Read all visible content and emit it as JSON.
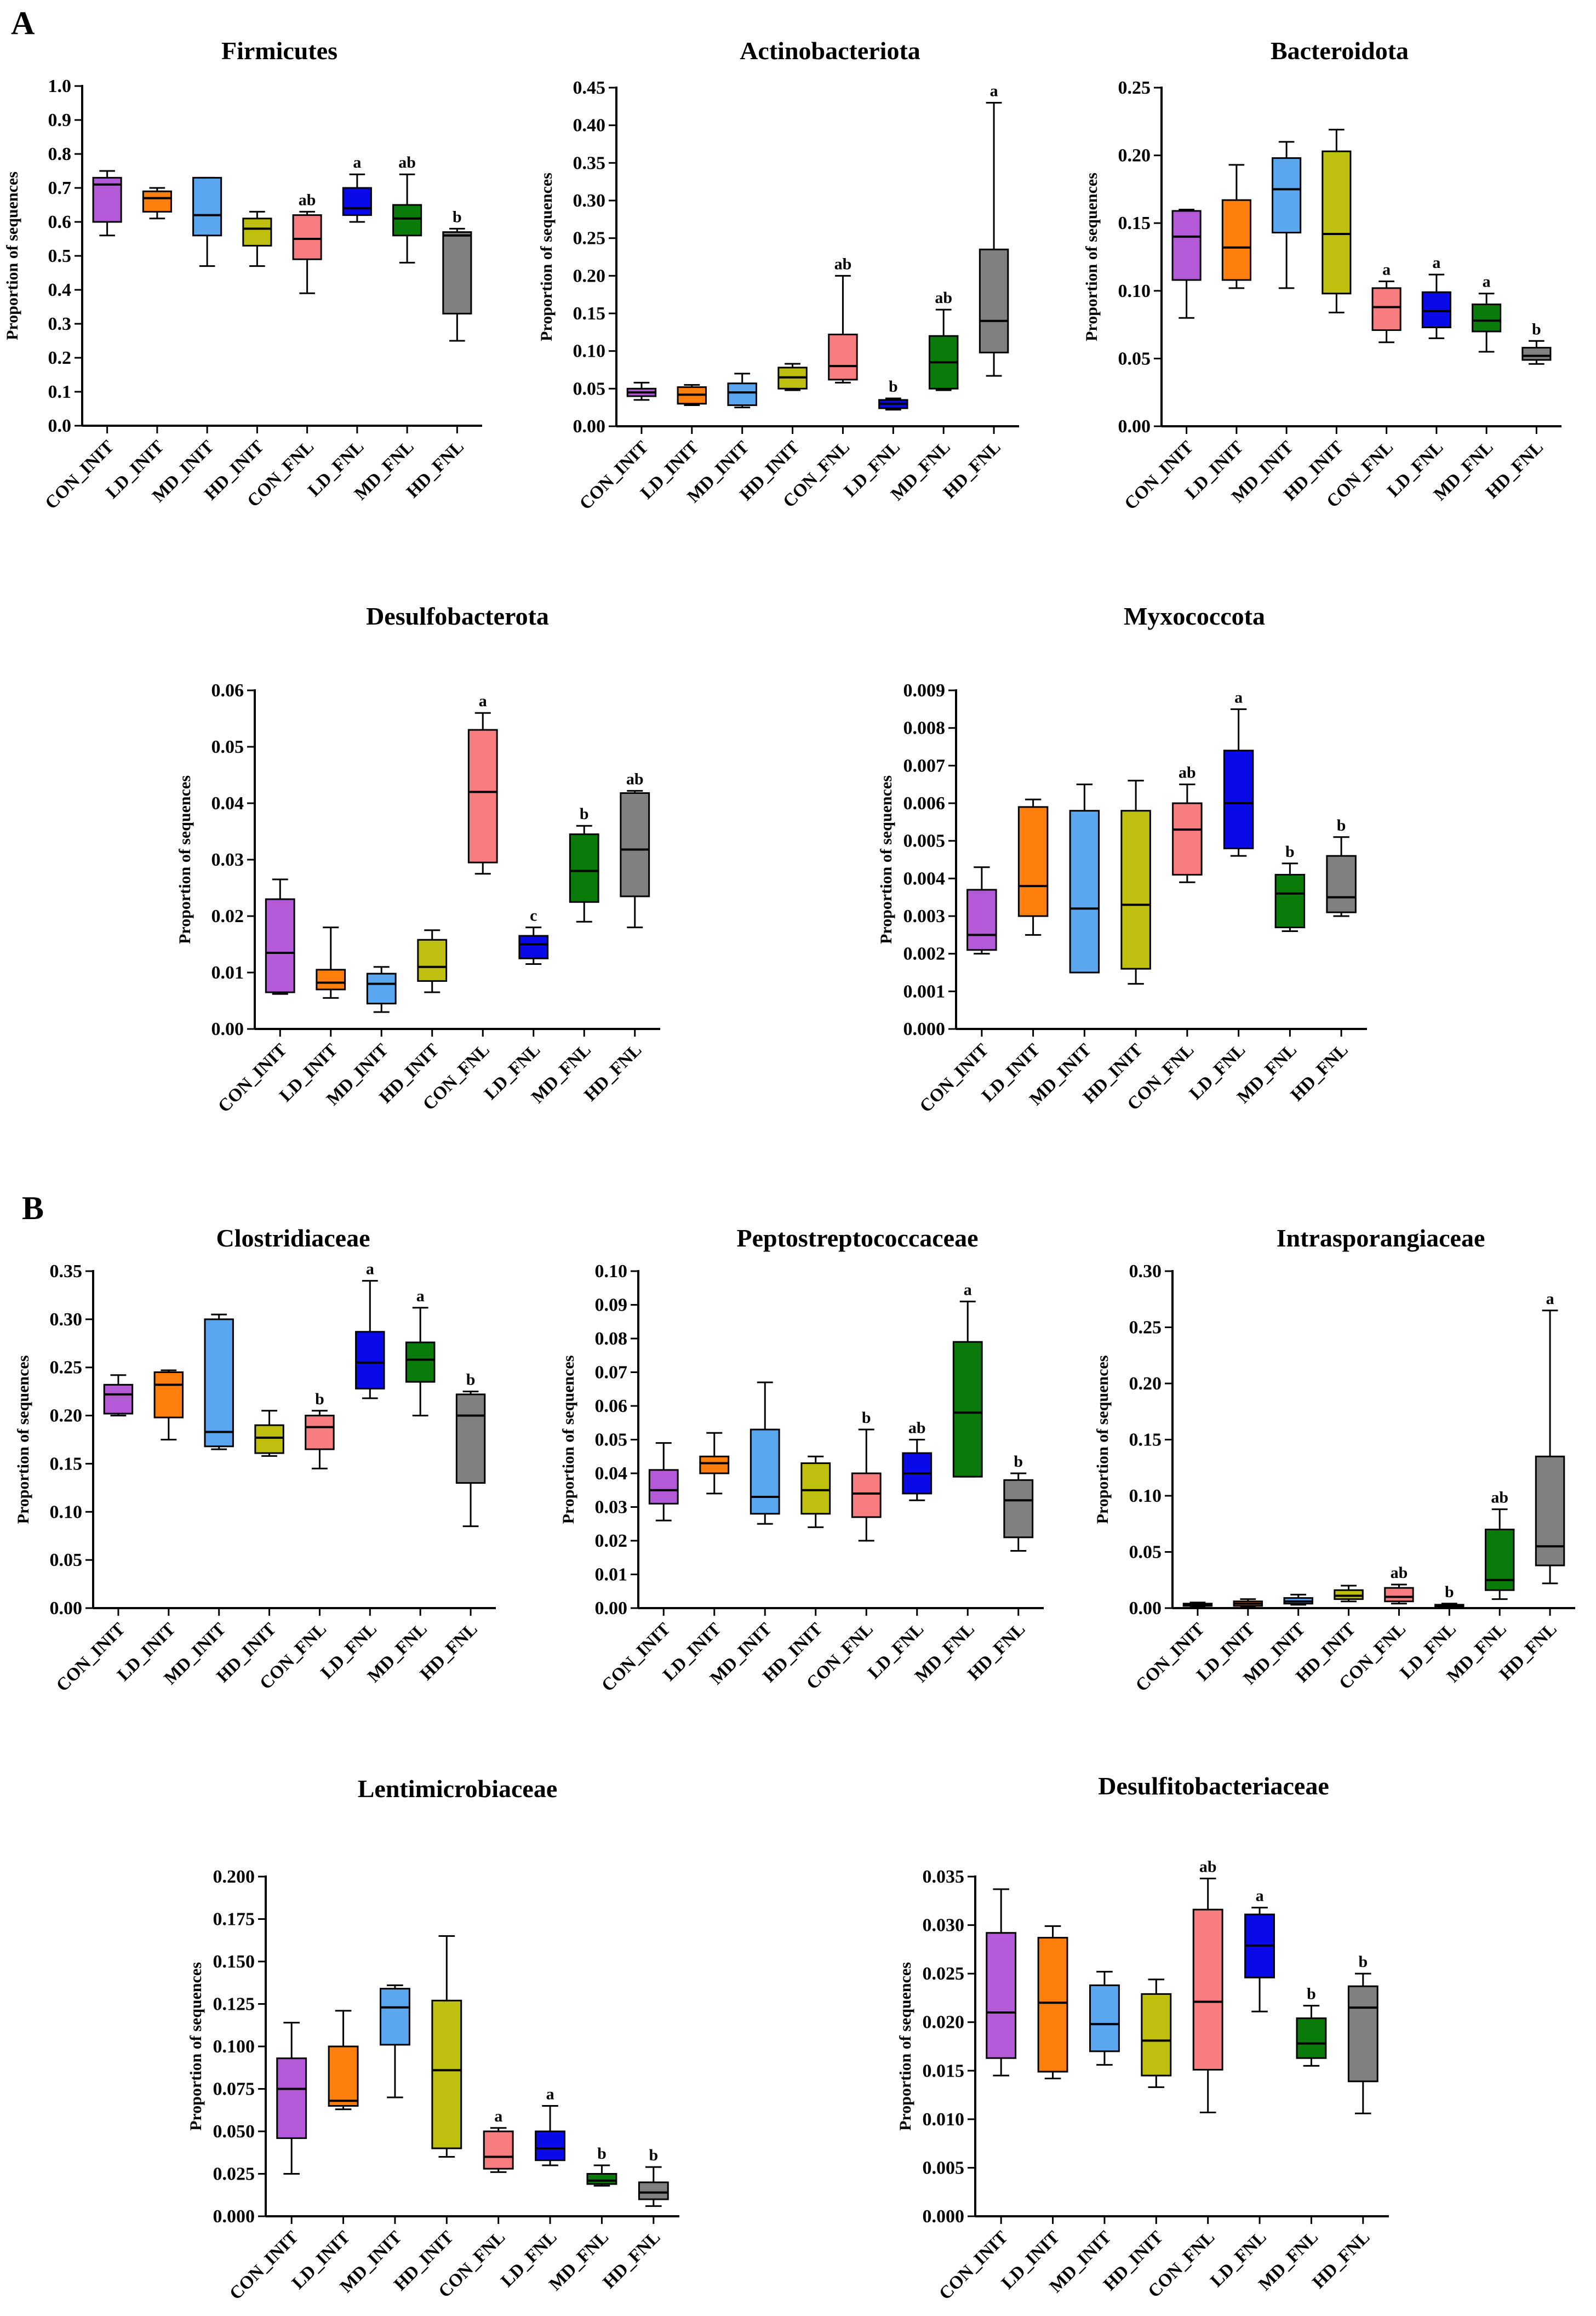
{
  "panel_labels": [
    "A",
    "B"
  ],
  "group_colors": {
    "CON_INIT": "#b45ad8",
    "LD_INIT": "#ff7f0e",
    "MD_INIT": "#5aa6ef",
    "HD_INIT": "#bfbf10",
    "CON_FNL": "#f87d80",
    "LD_FNL": "#0a0ae8",
    "MD_FNL": "#0a7a0a",
    "HD_FNL": "#808080"
  },
  "chart_data": [
    {
      "type": "box",
      "title": "Firmicutes",
      "ylabel": "Proportion of sequences",
      "ylim": [
        0,
        1.0
      ],
      "yticks": [
        "0.0",
        "0.1",
        "0.2",
        "0.3",
        "0.4",
        "0.5",
        "0.6",
        "0.7",
        "0.8",
        "0.9",
        "1.0"
      ],
      "categories": [
        "CON_INIT",
        "LD_INIT",
        "MD_INIT",
        "HD_INIT",
        "CON_FNL",
        "LD_FNL",
        "MD_FNL",
        "HD_FNL"
      ],
      "boxes": [
        {
          "min": 0.56,
          "q1": 0.6,
          "median": 0.71,
          "q3": 0.73,
          "max": 0.75,
          "label": ""
        },
        {
          "min": 0.61,
          "q1": 0.63,
          "median": 0.67,
          "q3": 0.69,
          "max": 0.7,
          "label": ""
        },
        {
          "min": 0.47,
          "q1": 0.56,
          "median": 0.62,
          "q3": 0.73,
          "max": 0.73,
          "label": ""
        },
        {
          "min": 0.47,
          "q1": 0.53,
          "median": 0.58,
          "q3": 0.61,
          "max": 0.63,
          "label": ""
        },
        {
          "min": 0.39,
          "q1": 0.49,
          "median": 0.55,
          "q3": 0.62,
          "max": 0.63,
          "label": "ab"
        },
        {
          "min": 0.6,
          "q1": 0.62,
          "median": 0.64,
          "q3": 0.7,
          "max": 0.74,
          "label": "a"
        },
        {
          "min": 0.48,
          "q1": 0.56,
          "median": 0.61,
          "q3": 0.65,
          "max": 0.74,
          "label": "ab"
        },
        {
          "min": 0.25,
          "q1": 0.33,
          "median": 0.56,
          "q3": 0.57,
          "max": 0.58,
          "label": "b"
        }
      ]
    },
    {
      "type": "box",
      "title": "Actinobacteriota",
      "ylabel": "Proportion of sequences",
      "ylim": [
        0,
        0.45
      ],
      "yticks": [
        "0.00",
        "0.05",
        "0.10",
        "0.15",
        "0.20",
        "0.25",
        "0.30",
        "0.35",
        "0.40",
        "0.45"
      ],
      "categories": [
        "CON_INIT",
        "LD_INIT",
        "MD_INIT",
        "HD_INIT",
        "CON_FNL",
        "LD_FNL",
        "MD_FNL",
        "HD_FNL"
      ],
      "boxes": [
        {
          "min": 0.035,
          "q1": 0.04,
          "median": 0.045,
          "q3": 0.05,
          "max": 0.058,
          "label": ""
        },
        {
          "min": 0.028,
          "q1": 0.03,
          "median": 0.042,
          "q3": 0.052,
          "max": 0.055,
          "label": ""
        },
        {
          "min": 0.025,
          "q1": 0.028,
          "median": 0.045,
          "q3": 0.057,
          "max": 0.07,
          "label": ""
        },
        {
          "min": 0.048,
          "q1": 0.05,
          "median": 0.065,
          "q3": 0.078,
          "max": 0.083,
          "label": ""
        },
        {
          "min": 0.058,
          "q1": 0.062,
          "median": 0.08,
          "q3": 0.122,
          "max": 0.2,
          "label": "ab"
        },
        {
          "min": 0.022,
          "q1": 0.024,
          "median": 0.03,
          "q3": 0.035,
          "max": 0.037,
          "label": "b"
        },
        {
          "min": 0.048,
          "q1": 0.05,
          "median": 0.085,
          "q3": 0.12,
          "max": 0.155,
          "label": "ab"
        },
        {
          "min": 0.067,
          "q1": 0.098,
          "median": 0.14,
          "q3": 0.235,
          "max": 0.43,
          "label": "a"
        }
      ]
    },
    {
      "type": "box",
      "title": "Bacteroidota",
      "ylabel": "Proportion of sequences",
      "ylim": [
        0,
        0.25
      ],
      "yticks": [
        "0.00",
        "0.05",
        "0.10",
        "0.15",
        "0.20",
        "0.25"
      ],
      "categories": [
        "CON_INIT",
        "LD_INIT",
        "MD_INIT",
        "HD_INIT",
        "CON_FNL",
        "LD_FNL",
        "MD_FNL",
        "HD_FNL"
      ],
      "boxes": [
        {
          "min": 0.08,
          "q1": 0.108,
          "median": 0.14,
          "q3": 0.159,
          "max": 0.16,
          "label": ""
        },
        {
          "min": 0.102,
          "q1": 0.108,
          "median": 0.132,
          "q3": 0.167,
          "max": 0.193,
          "label": ""
        },
        {
          "min": 0.102,
          "q1": 0.143,
          "median": 0.175,
          "q3": 0.198,
          "max": 0.21,
          "label": ""
        },
        {
          "min": 0.084,
          "q1": 0.098,
          "median": 0.142,
          "q3": 0.203,
          "max": 0.219,
          "label": ""
        },
        {
          "min": 0.062,
          "q1": 0.071,
          "median": 0.088,
          "q3": 0.102,
          "max": 0.107,
          "label": "a"
        },
        {
          "min": 0.065,
          "q1": 0.073,
          "median": 0.085,
          "q3": 0.099,
          "max": 0.112,
          "label": "a"
        },
        {
          "min": 0.055,
          "q1": 0.07,
          "median": 0.078,
          "q3": 0.09,
          "max": 0.098,
          "label": "a"
        },
        {
          "min": 0.046,
          "q1": 0.049,
          "median": 0.052,
          "q3": 0.058,
          "max": 0.063,
          "label": "b"
        }
      ]
    },
    {
      "type": "box",
      "title": "Desulfobacterota",
      "ylabel": "Proportion of sequences",
      "ylim": [
        0,
        0.06
      ],
      "yticks": [
        "0.00",
        "0.01",
        "0.02",
        "0.03",
        "0.04",
        "0.05",
        "0.06"
      ],
      "categories": [
        "CON_INIT",
        "LD_INIT",
        "MD_INIT",
        "HD_INIT",
        "CON_FNL",
        "LD_FNL",
        "MD_FNL",
        "HD_FNL"
      ],
      "boxes": [
        {
          "min": 0.0062,
          "q1": 0.0065,
          "median": 0.0135,
          "q3": 0.023,
          "max": 0.0265,
          "label": ""
        },
        {
          "min": 0.0055,
          "q1": 0.007,
          "median": 0.0082,
          "q3": 0.0105,
          "max": 0.018,
          "label": ""
        },
        {
          "min": 0.003,
          "q1": 0.0045,
          "median": 0.008,
          "q3": 0.0098,
          "max": 0.011,
          "label": ""
        },
        {
          "min": 0.0065,
          "q1": 0.0085,
          "median": 0.011,
          "q3": 0.0158,
          "max": 0.0175,
          "label": ""
        },
        {
          "min": 0.0275,
          "q1": 0.0295,
          "median": 0.042,
          "q3": 0.053,
          "max": 0.056,
          "label": "a"
        },
        {
          "min": 0.0115,
          "q1": 0.0125,
          "median": 0.015,
          "q3": 0.0165,
          "max": 0.018,
          "label": "c"
        },
        {
          "min": 0.019,
          "q1": 0.0225,
          "median": 0.028,
          "q3": 0.0345,
          "max": 0.036,
          "label": "b"
        },
        {
          "min": 0.018,
          "q1": 0.0235,
          "median": 0.0318,
          "q3": 0.0418,
          "max": 0.0422,
          "label": "ab"
        }
      ]
    },
    {
      "type": "box",
      "title": "Myxococcota",
      "ylabel": "Proportion of sequences",
      "ylim": [
        0,
        0.009
      ],
      "yticks": [
        "0.000",
        "0.001",
        "0.002",
        "0.003",
        "0.004",
        "0.005",
        "0.006",
        "0.007",
        "0.008",
        "0.009"
      ],
      "categories": [
        "CON_INIT",
        "LD_INIT",
        "MD_INIT",
        "HD_INIT",
        "CON_FNL",
        "LD_FNL",
        "MD_FNL",
        "HD_FNL"
      ],
      "boxes": [
        {
          "min": 0.002,
          "q1": 0.0021,
          "median": 0.0025,
          "q3": 0.0037,
          "max": 0.0043,
          "label": ""
        },
        {
          "min": 0.0025,
          "q1": 0.003,
          "median": 0.0038,
          "q3": 0.0059,
          "max": 0.0061,
          "label": ""
        },
        {
          "min": 0.0015,
          "q1": 0.0015,
          "median": 0.0032,
          "q3": 0.0058,
          "max": 0.0065,
          "label": ""
        },
        {
          "min": 0.0012,
          "q1": 0.0016,
          "median": 0.0033,
          "q3": 0.0058,
          "max": 0.0066,
          "label": ""
        },
        {
          "min": 0.0039,
          "q1": 0.0041,
          "median": 0.0053,
          "q3": 0.006,
          "max": 0.0065,
          "label": "ab"
        },
        {
          "min": 0.0046,
          "q1": 0.0048,
          "median": 0.006,
          "q3": 0.0074,
          "max": 0.0085,
          "label": "a"
        },
        {
          "min": 0.0026,
          "q1": 0.0027,
          "median": 0.0036,
          "q3": 0.0041,
          "max": 0.0044,
          "label": "b"
        },
        {
          "min": 0.003,
          "q1": 0.0031,
          "median": 0.0035,
          "q3": 0.0046,
          "max": 0.0051,
          "label": "b"
        }
      ]
    },
    {
      "type": "box",
      "title": "Clostridiaceae",
      "ylabel": "Proportion of sequences",
      "ylim": [
        0,
        0.35
      ],
      "yticks": [
        "0.00",
        "0.05",
        "0.10",
        "0.15",
        "0.20",
        "0.25",
        "0.30",
        "0.35"
      ],
      "categories": [
        "CON_INIT",
        "LD_INIT",
        "MD_INIT",
        "HD_INIT",
        "CON_FNL",
        "LD_FNL",
        "MD_FNL",
        "HD_FNL"
      ],
      "boxes": [
        {
          "min": 0.2,
          "q1": 0.202,
          "median": 0.222,
          "q3": 0.232,
          "max": 0.242,
          "label": ""
        },
        {
          "min": 0.175,
          "q1": 0.198,
          "median": 0.232,
          "q3": 0.245,
          "max": 0.247,
          "label": ""
        },
        {
          "min": 0.165,
          "q1": 0.168,
          "median": 0.183,
          "q3": 0.3,
          "max": 0.305,
          "label": ""
        },
        {
          "min": 0.158,
          "q1": 0.161,
          "median": 0.177,
          "q3": 0.19,
          "max": 0.205,
          "label": ""
        },
        {
          "min": 0.145,
          "q1": 0.165,
          "median": 0.188,
          "q3": 0.2,
          "max": 0.205,
          "label": "b"
        },
        {
          "min": 0.218,
          "q1": 0.228,
          "median": 0.255,
          "q3": 0.287,
          "max": 0.34,
          "label": "a"
        },
        {
          "min": 0.2,
          "q1": 0.235,
          "median": 0.258,
          "q3": 0.276,
          "max": 0.312,
          "label": "a"
        },
        {
          "min": 0.085,
          "q1": 0.13,
          "median": 0.2,
          "q3": 0.222,
          "max": 0.225,
          "label": "b"
        }
      ]
    },
    {
      "type": "box",
      "title": "Peptostreptococcaceae",
      "ylabel": "Proportion of sequences",
      "ylim": [
        0,
        0.1
      ],
      "yticks": [
        "0.00",
        "0.01",
        "0.02",
        "0.03",
        "0.04",
        "0.05",
        "0.06",
        "0.07",
        "0.08",
        "0.09",
        "0.10"
      ],
      "categories": [
        "CON_INIT",
        "LD_INIT",
        "MD_INIT",
        "HD_INIT",
        "CON_FNL",
        "LD_FNL",
        "MD_FNL",
        "HD_FNL"
      ],
      "boxes": [
        {
          "min": 0.026,
          "q1": 0.031,
          "median": 0.035,
          "q3": 0.041,
          "max": 0.049,
          "label": ""
        },
        {
          "min": 0.034,
          "q1": 0.04,
          "median": 0.043,
          "q3": 0.045,
          "max": 0.052,
          "label": ""
        },
        {
          "min": 0.025,
          "q1": 0.028,
          "median": 0.033,
          "q3": 0.053,
          "max": 0.067,
          "label": ""
        },
        {
          "min": 0.024,
          "q1": 0.028,
          "median": 0.035,
          "q3": 0.043,
          "max": 0.045,
          "label": ""
        },
        {
          "min": 0.02,
          "q1": 0.027,
          "median": 0.034,
          "q3": 0.04,
          "max": 0.053,
          "label": "b"
        },
        {
          "min": 0.032,
          "q1": 0.034,
          "median": 0.04,
          "q3": 0.046,
          "max": 0.05,
          "label": "ab"
        },
        {
          "min": 0.039,
          "q1": 0.039,
          "median": 0.058,
          "q3": 0.079,
          "max": 0.091,
          "label": "a"
        },
        {
          "min": 0.017,
          "q1": 0.021,
          "median": 0.032,
          "q3": 0.038,
          "max": 0.04,
          "label": "b"
        }
      ]
    },
    {
      "type": "box",
      "title": "Intrasporangiaceae",
      "ylabel": "Proportion of sequences",
      "ylim": [
        0,
        0.3
      ],
      "yticks": [
        "0.00",
        "0.05",
        "0.10",
        "0.15",
        "0.20",
        "0.25",
        "0.30"
      ],
      "categories": [
        "CON_INIT",
        "LD_INIT",
        "MD_INIT",
        "HD_INIT",
        "CON_FNL",
        "LD_FNL",
        "MD_FNL",
        "HD_FNL"
      ],
      "boxes": [
        {
          "min": 0.001,
          "q1": 0.002,
          "median": 0.003,
          "q3": 0.004,
          "max": 0.005,
          "label": ""
        },
        {
          "min": 0.001,
          "q1": 0.002,
          "median": 0.004,
          "q3": 0.006,
          "max": 0.008,
          "label": ""
        },
        {
          "min": 0.003,
          "q1": 0.004,
          "median": 0.006,
          "q3": 0.009,
          "max": 0.012,
          "label": ""
        },
        {
          "min": 0.006,
          "q1": 0.008,
          "median": 0.011,
          "q3": 0.016,
          "max": 0.02,
          "label": ""
        },
        {
          "min": 0.004,
          "q1": 0.006,
          "median": 0.01,
          "q3": 0.018,
          "max": 0.021,
          "label": "ab"
        },
        {
          "min": 0.001,
          "q1": 0.001,
          "median": 0.002,
          "q3": 0.003,
          "max": 0.004,
          "label": "b"
        },
        {
          "min": 0.008,
          "q1": 0.016,
          "median": 0.025,
          "q3": 0.07,
          "max": 0.088,
          "label": "ab"
        },
        {
          "min": 0.022,
          "q1": 0.038,
          "median": 0.055,
          "q3": 0.135,
          "max": 0.265,
          "label": "a"
        }
      ]
    },
    {
      "type": "box",
      "title": "Lentimicrobiaceae",
      "ylabel": "Proportion of sequences",
      "ylim": [
        0,
        0.2
      ],
      "yticks": [
        "0.000",
        "0.025",
        "0.050",
        "0.075",
        "0.100",
        "0.125",
        "0.150",
        "0.175",
        "0.200"
      ],
      "categories": [
        "CON_INIT",
        "LD_INIT",
        "MD_INIT",
        "HD_INIT",
        "CON_FNL",
        "LD_FNL",
        "MD_FNL",
        "HD_FNL"
      ],
      "boxes": [
        {
          "min": 0.025,
          "q1": 0.046,
          "median": 0.075,
          "q3": 0.093,
          "max": 0.114,
          "label": ""
        },
        {
          "min": 0.063,
          "q1": 0.065,
          "median": 0.068,
          "q3": 0.1,
          "max": 0.121,
          "label": ""
        },
        {
          "min": 0.07,
          "q1": 0.101,
          "median": 0.123,
          "q3": 0.134,
          "max": 0.136,
          "label": ""
        },
        {
          "min": 0.035,
          "q1": 0.04,
          "median": 0.086,
          "q3": 0.127,
          "max": 0.165,
          "label": ""
        },
        {
          "min": 0.026,
          "q1": 0.028,
          "median": 0.035,
          "q3": 0.05,
          "max": 0.052,
          "label": "a"
        },
        {
          "min": 0.03,
          "q1": 0.033,
          "median": 0.04,
          "q3": 0.05,
          "max": 0.065,
          "label": "a"
        },
        {
          "min": 0.018,
          "q1": 0.019,
          "median": 0.021,
          "q3": 0.025,
          "max": 0.03,
          "label": "b"
        },
        {
          "min": 0.006,
          "q1": 0.01,
          "median": 0.014,
          "q3": 0.02,
          "max": 0.029,
          "label": "b"
        }
      ]
    },
    {
      "type": "box",
      "title": "Desulfitobacteriaceae",
      "ylabel": "Proportion of sequences",
      "ylim": [
        0,
        0.035
      ],
      "yticks": [
        "0.000",
        "0.005",
        "0.010",
        "0.015",
        "0.020",
        "0.025",
        "0.030",
        "0.035"
      ],
      "categories": [
        "CON_INIT",
        "LD_INIT",
        "MD_INIT",
        "HD_INIT",
        "CON_FNL",
        "LD_FNL",
        "MD_FNL",
        "HD_FNL"
      ],
      "boxes": [
        {
          "min": 0.0145,
          "q1": 0.0163,
          "median": 0.021,
          "q3": 0.0292,
          "max": 0.0337,
          "label": ""
        },
        {
          "min": 0.0142,
          "q1": 0.0149,
          "median": 0.022,
          "q3": 0.0287,
          "max": 0.0299,
          "label": ""
        },
        {
          "min": 0.0156,
          "q1": 0.017,
          "median": 0.0198,
          "q3": 0.0238,
          "max": 0.0252,
          "label": ""
        },
        {
          "min": 0.0133,
          "q1": 0.0145,
          "median": 0.0181,
          "q3": 0.0229,
          "max": 0.0244,
          "label": ""
        },
        {
          "min": 0.0107,
          "q1": 0.0151,
          "median": 0.0221,
          "q3": 0.0316,
          "max": 0.0348,
          "label": "ab"
        },
        {
          "min": 0.0211,
          "q1": 0.0246,
          "median": 0.0279,
          "q3": 0.0311,
          "max": 0.0318,
          "label": "a"
        },
        {
          "min": 0.0155,
          "q1": 0.0163,
          "median": 0.0178,
          "q3": 0.0204,
          "max": 0.0217,
          "label": "b"
        },
        {
          "min": 0.0106,
          "q1": 0.0139,
          "median": 0.0215,
          "q3": 0.0237,
          "max": 0.025,
          "label": "b"
        }
      ]
    }
  ]
}
